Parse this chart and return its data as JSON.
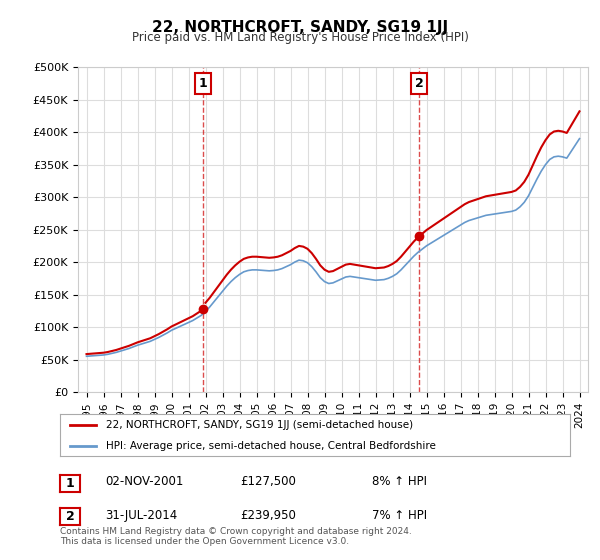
{
  "title": "22, NORTHCROFT, SANDY, SG19 1JJ",
  "subtitle": "Price paid vs. HM Land Registry's House Price Index (HPI)",
  "ylabel_ticks": [
    "£0",
    "£50K",
    "£100K",
    "£150K",
    "£200K",
    "£250K",
    "£300K",
    "£350K",
    "£400K",
    "£450K",
    "£500K"
  ],
  "ytick_values": [
    0,
    50000,
    100000,
    150000,
    200000,
    250000,
    300000,
    350000,
    400000,
    450000,
    500000
  ],
  "xlim": [
    1994.5,
    2024.5
  ],
  "ylim": [
    0,
    500000
  ],
  "line1_label": "22, NORTHCROFT, SANDY, SG19 1JJ (semi-detached house)",
  "line2_label": "HPI: Average price, semi-detached house, Central Bedfordshire",
  "line1_color": "#cc0000",
  "line2_color": "#6699cc",
  "marker1_year": 2001.84,
  "marker1_value": 127500,
  "marker2_year": 2014.58,
  "marker2_value": 239950,
  "annotation1_label": "1",
  "annotation1_date": "02-NOV-2001",
  "annotation1_price": "£127,500",
  "annotation1_hpi": "8% ↑ HPI",
  "annotation2_label": "2",
  "annotation2_date": "31-JUL-2014",
  "annotation2_price": "£239,950",
  "annotation2_hpi": "7% ↑ HPI",
  "footer": "Contains HM Land Registry data © Crown copyright and database right 2024.\nThis data is licensed under the Open Government Licence v3.0.",
  "bg_color": "#ffffff",
  "grid_color": "#dddddd",
  "hpi_years": [
    1995,
    1995.25,
    1995.5,
    1995.75,
    1996,
    1996.25,
    1996.5,
    1996.75,
    1997,
    1997.25,
    1997.5,
    1997.75,
    1998,
    1998.25,
    1998.5,
    1998.75,
    1999,
    1999.25,
    1999.5,
    1999.75,
    2000,
    2000.25,
    2000.5,
    2000.75,
    2001,
    2001.25,
    2001.5,
    2001.75,
    2002,
    2002.25,
    2002.5,
    2002.75,
    2003,
    2003.25,
    2003.5,
    2003.75,
    2004,
    2004.25,
    2004.5,
    2004.75,
    2005,
    2005.25,
    2005.5,
    2005.75,
    2006,
    2006.25,
    2006.5,
    2006.75,
    2007,
    2007.25,
    2007.5,
    2007.75,
    2008,
    2008.25,
    2008.5,
    2008.75,
    2009,
    2009.25,
    2009.5,
    2009.75,
    2010,
    2010.25,
    2010.5,
    2010.75,
    2011,
    2011.25,
    2011.5,
    2011.75,
    2012,
    2012.25,
    2012.5,
    2012.75,
    2013,
    2013.25,
    2013.5,
    2013.75,
    2014,
    2014.25,
    2014.5,
    2014.75,
    2015,
    2015.25,
    2015.5,
    2015.75,
    2016,
    2016.25,
    2016.5,
    2016.75,
    2017,
    2017.25,
    2017.5,
    2017.75,
    2018,
    2018.25,
    2018.5,
    2018.75,
    2019,
    2019.25,
    2019.5,
    2019.75,
    2020,
    2020.25,
    2020.5,
    2020.75,
    2021,
    2021.25,
    2021.5,
    2021.75,
    2022,
    2022.25,
    2022.5,
    2022.75,
    2023,
    2023.25,
    2023.5,
    2023.75,
    2024
  ],
  "hpi_values": [
    55000,
    55500,
    56000,
    56500,
    57000,
    58000,
    59500,
    61000,
    63000,
    65000,
    67000,
    69500,
    72000,
    74000,
    76000,
    78000,
    81000,
    84000,
    87500,
    91000,
    95000,
    98000,
    101000,
    104000,
    107000,
    110000,
    114000,
    118000,
    124000,
    131000,
    139000,
    147000,
    155000,
    163000,
    170000,
    176000,
    181000,
    185000,
    187000,
    188000,
    188000,
    187500,
    187000,
    186500,
    187000,
    188000,
    190000,
    193000,
    196000,
    200000,
    203000,
    202000,
    199000,
    193000,
    185000,
    176000,
    170000,
    167000,
    168000,
    171000,
    174000,
    177000,
    178000,
    177000,
    176000,
    175000,
    174000,
    173000,
    172000,
    172500,
    173000,
    175000,
    178000,
    182000,
    188000,
    195000,
    202000,
    209000,
    215000,
    220000,
    225000,
    229000,
    233000,
    237000,
    241000,
    245000,
    249000,
    253000,
    257000,
    261000,
    264000,
    266000,
    268000,
    270000,
    272000,
    273000,
    274000,
    275000,
    276000,
    277000,
    278000,
    280000,
    285000,
    292000,
    302000,
    315000,
    328000,
    340000,
    350000,
    358000,
    362000,
    363000,
    362000,
    360000,
    370000,
    380000,
    390000
  ],
  "price_paid_years": [
    2001.84,
    2014.58
  ],
  "price_paid_values": [
    127500,
    239950
  ],
  "xtick_years": [
    1995,
    1996,
    1997,
    1998,
    1999,
    2000,
    2001,
    2002,
    2003,
    2004,
    2005,
    2006,
    2007,
    2008,
    2009,
    2010,
    2011,
    2012,
    2013,
    2014,
    2015,
    2016,
    2017,
    2018,
    2019,
    2020,
    2021,
    2022,
    2023,
    2024
  ]
}
